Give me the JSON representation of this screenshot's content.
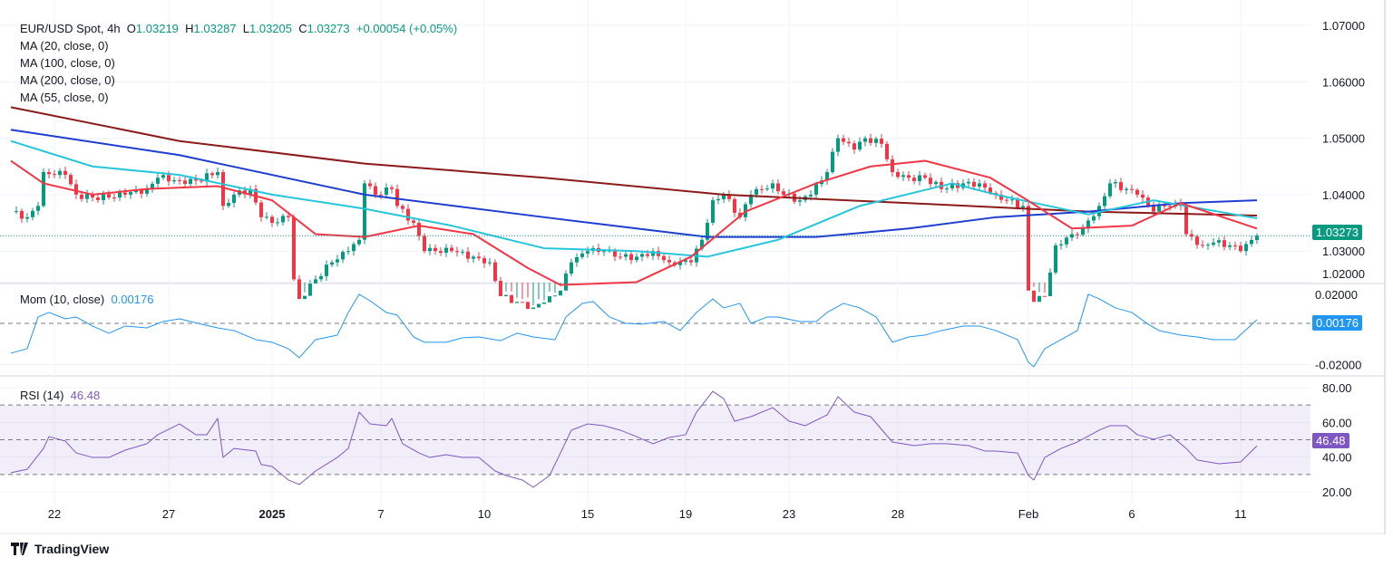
{
  "header": {
    "symbol": "EUR/USD Spot, 4h",
    "o_label": "O",
    "o": "1.03219",
    "h_label": "H",
    "h": "1.03287",
    "l_label": "L",
    "l": "1.03205",
    "c_label": "C",
    "c": "1.03273",
    "change": "+0.00054 (+0.05%)"
  },
  "legends": {
    "ma20": "MA (20, close, 0)",
    "ma100": "MA (100, close, 0)",
    "ma200": "MA (200, close, 0)",
    "ma55": "MA (55, close, 0)",
    "mom": "Mom (10, close)",
    "mom_value": "0.00176",
    "rsi": "RSI (14)",
    "rsi_value": "46.48"
  },
  "tags": {
    "price": "1.03273",
    "mom": "0.00176",
    "rsi": "46.48"
  },
  "branding": "TradingView",
  "colors": {
    "up": "#089981",
    "down": "#f23645",
    "ma20": "#f23645",
    "ma55": "#26c6da",
    "ma100": "#1e3ecf",
    "ma200": "#8b1a1a",
    "mom": "#2196f3",
    "rsi": "#7e57c2"
  },
  "chart_data": {
    "type": "candlestick",
    "x_unit": "4h bar index",
    "x_ticks": [
      {
        "bar": 8,
        "label": "22"
      },
      {
        "bar": 29,
        "label": "27"
      },
      {
        "bar": 48,
        "label": "2025"
      },
      {
        "bar": 68,
        "label": "7"
      },
      {
        "bar": 87,
        "label": "10"
      },
      {
        "bar": 106,
        "label": "15"
      },
      {
        "bar": 124,
        "label": "19"
      },
      {
        "bar": 143,
        "label": "23"
      },
      {
        "bar": 163,
        "label": "28"
      },
      {
        "bar": 187,
        "label": "Feb"
      },
      {
        "bar": 206,
        "label": "6"
      },
      {
        "bar": 226,
        "label": "11"
      }
    ],
    "price": {
      "y_ticks": [
        "1.07000",
        "1.06000",
        "1.05000",
        "1.04000",
        "1.03000",
        "1.02000"
      ],
      "ylim": [
        1.0195,
        1.0715
      ],
      "close": [
        [
          0,
          1.037
        ],
        [
          3,
          1.036
        ],
        [
          5,
          1.038
        ],
        [
          6,
          1.044
        ],
        [
          10,
          1.0435
        ],
        [
          12,
          1.04
        ],
        [
          15,
          1.0395
        ],
        [
          18,
          1.0395
        ],
        [
          21,
          1.04
        ],
        [
          25,
          1.041
        ],
        [
          27,
          1.043
        ],
        [
          31,
          1.0425
        ],
        [
          34,
          1.0425
        ],
        [
          38,
          1.044
        ],
        [
          39,
          1.038
        ],
        [
          41,
          1.04
        ],
        [
          44,
          1.041
        ],
        [
          46,
          1.036
        ],
        [
          48,
          1.035
        ],
        [
          51,
          1.036
        ],
        [
          52,
          1.025
        ],
        [
          53,
          1.0215
        ],
        [
          56,
          1.025
        ],
        [
          59,
          1.028
        ],
        [
          62,
          1.03
        ],
        [
          64,
          1.032
        ],
        [
          65,
          1.042
        ],
        [
          67,
          1.04
        ],
        [
          70,
          1.041
        ],
        [
          71,
          1.038
        ],
        [
          74,
          1.035
        ],
        [
          76,
          1.03
        ],
        [
          78,
          1.03
        ],
        [
          81,
          1.03
        ],
        [
          85,
          1.029
        ],
        [
          88,
          1.028
        ],
        [
          90,
          1.022
        ],
        [
          93,
          1.021
        ],
        [
          96,
          1.02
        ],
        [
          99,
          1.022
        ],
        [
          101,
          1.023
        ],
        [
          103,
          1.028
        ],
        [
          106,
          1.03
        ],
        [
          109,
          1.03
        ],
        [
          111,
          1.029
        ],
        [
          115,
          1.029
        ],
        [
          118,
          1.03
        ],
        [
          121,
          1.028
        ],
        [
          125,
          1.028
        ],
        [
          127,
          1.032
        ],
        [
          129,
          1.039
        ],
        [
          131,
          1.04
        ],
        [
          134,
          1.036
        ],
        [
          136,
          1.04
        ],
        [
          140,
          1.042
        ],
        [
          142,
          1.04
        ],
        [
          145,
          1.039
        ],
        [
          147,
          1.04
        ],
        [
          150,
          1.044
        ],
        [
          152,
          1.05
        ],
        [
          155,
          1.048
        ],
        [
          157,
          1.05
        ],
        [
          160,
          1.049
        ],
        [
          162,
          1.044
        ],
        [
          165,
          1.043
        ],
        [
          168,
          1.043
        ],
        [
          171,
          1.041
        ],
        [
          175,
          1.042
        ],
        [
          178,
          1.042
        ],
        [
          181,
          1.04
        ],
        [
          183,
          1.039
        ],
        [
          186,
          1.038
        ],
        [
          187,
          1.023
        ],
        [
          188,
          1.021
        ],
        [
          190,
          1.022
        ],
        [
          192,
          1.031
        ],
        [
          195,
          1.033
        ],
        [
          197,
          1.034
        ],
        [
          200,
          1.038
        ],
        [
          202,
          1.042
        ],
        [
          205,
          1.041
        ],
        [
          207,
          1.04
        ],
        [
          210,
          1.037
        ],
        [
          212,
          1.038
        ],
        [
          215,
          1.038
        ],
        [
          216,
          1.033
        ],
        [
          219,
          1.031
        ],
        [
          221,
          1.0315
        ],
        [
          224,
          1.031
        ],
        [
          226,
          1.03
        ],
        [
          229,
          1.03273
        ]
      ],
      "ma200": [
        [
          0,
          1.0555
        ],
        [
          31,
          1.0495
        ],
        [
          65,
          1.0455
        ],
        [
          98,
          1.043
        ],
        [
          131,
          1.04
        ],
        [
          165,
          1.0385
        ],
        [
          198,
          1.037
        ],
        [
          229,
          1.0363
        ]
      ],
      "ma100": [
        [
          0,
          1.0515
        ],
        [
          31,
          1.047
        ],
        [
          65,
          1.04
        ],
        [
          98,
          1.036
        ],
        [
          115,
          1.034
        ],
        [
          128,
          1.0325
        ],
        [
          148,
          1.0325
        ],
        [
          165,
          1.034
        ],
        [
          181,
          1.036
        ],
        [
          198,
          1.037
        ],
        [
          215,
          1.0385
        ],
        [
          229,
          1.039
        ]
      ],
      "ma55": [
        [
          0,
          1.0495
        ],
        [
          15,
          1.045
        ],
        [
          31,
          1.0435
        ],
        [
          48,
          1.04
        ],
        [
          65,
          1.0375
        ],
        [
          81,
          1.0345
        ],
        [
          98,
          1.0305
        ],
        [
          115,
          1.03
        ],
        [
          128,
          1.029
        ],
        [
          141,
          1.032
        ],
        [
          156,
          1.038
        ],
        [
          173,
          1.042
        ],
        [
          181,
          1.04
        ],
        [
          198,
          1.0365
        ],
        [
          210,
          1.039
        ],
        [
          229,
          1.0358
        ]
      ],
      "ma20": [
        [
          0,
          1.046
        ],
        [
          6,
          1.042
        ],
        [
          15,
          1.04
        ],
        [
          25,
          1.041
        ],
        [
          38,
          1.0415
        ],
        [
          48,
          1.039
        ],
        [
          56,
          1.033
        ],
        [
          65,
          1.0325
        ],
        [
          75,
          1.0345
        ],
        [
          85,
          1.033
        ],
        [
          95,
          1.027
        ],
        [
          101,
          1.024
        ],
        [
          115,
          1.0245
        ],
        [
          125,
          1.029
        ],
        [
          135,
          1.037
        ],
        [
          148,
          1.042
        ],
        [
          158,
          1.045
        ],
        [
          168,
          1.046
        ],
        [
          180,
          1.043
        ],
        [
          186,
          1.0395
        ],
        [
          195,
          1.034
        ],
        [
          206,
          1.0345
        ],
        [
          215,
          1.0385
        ],
        [
          229,
          1.034
        ]
      ]
    },
    "momentum": {
      "y_ticks": [
        "0.02000",
        "-0.02000"
      ],
      "values": [
        [
          0,
          -0.0145
        ],
        [
          3,
          -0.0123
        ],
        [
          5,
          0.0031
        ],
        [
          7,
          0.0053
        ],
        [
          10,
          0.0022
        ],
        [
          12,
          0.0031
        ],
        [
          15,
          -0.0013
        ],
        [
          18,
          -0.0048
        ],
        [
          21,
          -0.0013
        ],
        [
          25,
          -0.0022
        ],
        [
          28,
          0.0009
        ],
        [
          31,
          0.0022
        ],
        [
          35,
          -0.0004
        ],
        [
          38,
          -0.0022
        ],
        [
          41,
          -0.0035
        ],
        [
          45,
          -0.0079
        ],
        [
          48,
          -0.0092
        ],
        [
          51,
          -0.0123
        ],
        [
          53,
          -0.0167
        ],
        [
          56,
          -0.0079
        ],
        [
          60,
          -0.0057
        ],
        [
          62,
          0.0053
        ],
        [
          64,
          0.0141
        ],
        [
          66,
          0.011
        ],
        [
          69,
          0.0053
        ],
        [
          71,
          0.004
        ],
        [
          74,
          -0.0066
        ],
        [
          76,
          -0.0092
        ],
        [
          80,
          -0.0092
        ],
        [
          83,
          -0.007
        ],
        [
          86,
          -0.0066
        ],
        [
          90,
          -0.0084
        ],
        [
          93,
          -0.0048
        ],
        [
          96,
          -0.0066
        ],
        [
          100,
          -0.0079
        ],
        [
          102,
          0.0031
        ],
        [
          105,
          0.0097
        ],
        [
          107,
          0.0106
        ],
        [
          110,
          0.0031
        ],
        [
          113,
          0
        ],
        [
          116,
          -0.0004
        ],
        [
          120,
          0.0009
        ],
        [
          123,
          -0.0035
        ],
        [
          126,
          0.0053
        ],
        [
          129,
          0.0119
        ],
        [
          131,
          0.0075
        ],
        [
          134,
          0.0097
        ],
        [
          136,
          0
        ],
        [
          139,
          0.0031
        ],
        [
          141,
          0.0031
        ],
        [
          145,
          0.0009
        ],
        [
          148,
          0.0009
        ],
        [
          150,
          0.0053
        ],
        [
          153,
          0.0097
        ],
        [
          156,
          0.0075
        ],
        [
          159,
          0.0031
        ],
        [
          162,
          -0.0092
        ],
        [
          165,
          -0.0066
        ],
        [
          168,
          -0.0057
        ],
        [
          171,
          -0.0035
        ],
        [
          175,
          -0.0013
        ],
        [
          178,
          -0.0013
        ],
        [
          181,
          -0.0035
        ],
        [
          185,
          -0.0079
        ],
        [
          187,
          -0.0189
        ],
        [
          188,
          -0.0211
        ],
        [
          190,
          -0.0123
        ],
        [
          193,
          -0.0079
        ],
        [
          196,
          -0.0035
        ],
        [
          198,
          0.0141
        ],
        [
          200,
          0.0119
        ],
        [
          203,
          0.0075
        ],
        [
          206,
          0.0053
        ],
        [
          209,
          -0.0004
        ],
        [
          211,
          -0.0035
        ],
        [
          215,
          -0.0057
        ],
        [
          218,
          -0.0066
        ],
        [
          221,
          -0.0079
        ],
        [
          225,
          -0.0079
        ],
        [
          229,
          0.00176
        ]
      ]
    },
    "rsi": {
      "y_ticks": [
        "80.00",
        "60.00",
        "40.00",
        "20.00"
      ],
      "bands": [
        30,
        50,
        70
      ],
      "values": [
        [
          0,
          31.0
        ],
        [
          3,
          33.0
        ],
        [
          6,
          45.0
        ],
        [
          7,
          51.8
        ],
        [
          10,
          49.2
        ],
        [
          12,
          42.4
        ],
        [
          15,
          39.8
        ],
        [
          18,
          39.8
        ],
        [
          21,
          44.0
        ],
        [
          25,
          47.7
        ],
        [
          27,
          52.9
        ],
        [
          31,
          59.1
        ],
        [
          34,
          52.9
        ],
        [
          36,
          52.9
        ],
        [
          38,
          62.3
        ],
        [
          39,
          39.8
        ],
        [
          41,
          45.0
        ],
        [
          45,
          43.5
        ],
        [
          46,
          35.7
        ],
        [
          48,
          34.6
        ],
        [
          51,
          26.8
        ],
        [
          53,
          24.2
        ],
        [
          56,
          32.0
        ],
        [
          60,
          39.8
        ],
        [
          62,
          45.0
        ],
        [
          64,
          65.9
        ],
        [
          66,
          59.1
        ],
        [
          69,
          58.1
        ],
        [
          70,
          62.3
        ],
        [
          72,
          47.7
        ],
        [
          75,
          42.4
        ],
        [
          77,
          39.8
        ],
        [
          80,
          41.4
        ],
        [
          83,
          39.8
        ],
        [
          86,
          39.8
        ],
        [
          89,
          32.0
        ],
        [
          91,
          29.4
        ],
        [
          94,
          26.8
        ],
        [
          96,
          22.6
        ],
        [
          99,
          29.4
        ],
        [
          101,
          42.4
        ],
        [
          103,
          55.5
        ],
        [
          106,
          59.1
        ],
        [
          109,
          58.1
        ],
        [
          112,
          55.5
        ],
        [
          115,
          51.8
        ],
        [
          118,
          47.7
        ],
        [
          121,
          51.3
        ],
        [
          124,
          52.9
        ],
        [
          126,
          65.9
        ],
        [
          129,
          77.9
        ],
        [
          131,
          73.7
        ],
        [
          133,
          60.7
        ],
        [
          136,
          63.3
        ],
        [
          140,
          68.5
        ],
        [
          143,
          60.7
        ],
        [
          146,
          58.1
        ],
        [
          150,
          64.3
        ],
        [
          152,
          74.8
        ],
        [
          155,
          65.9
        ],
        [
          158,
          63.3
        ],
        [
          162,
          48.7
        ],
        [
          166,
          46.6
        ],
        [
          169,
          47.7
        ],
        [
          172,
          47.7
        ],
        [
          176,
          46.6
        ],
        [
          179,
          43.5
        ],
        [
          181,
          43.5
        ],
        [
          185,
          42.4
        ],
        [
          187,
          29.4
        ],
        [
          188,
          26.8
        ],
        [
          190,
          39.8
        ],
        [
          193,
          45.0
        ],
        [
          196,
          48.7
        ],
        [
          200,
          55.5
        ],
        [
          202,
          58.1
        ],
        [
          205,
          58.1
        ],
        [
          207,
          52.9
        ],
        [
          210,
          50.3
        ],
        [
          213,
          52.9
        ],
        [
          216,
          45.0
        ],
        [
          218,
          38.3
        ],
        [
          222,
          36.2
        ],
        [
          226,
          37.2
        ],
        [
          229,
          46.48
        ]
      ]
    }
  }
}
